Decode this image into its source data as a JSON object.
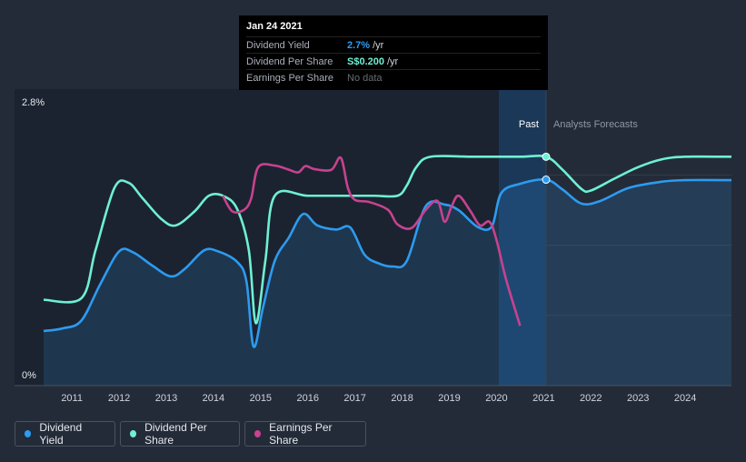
{
  "chart_data": {
    "type": "line",
    "x_ticks": [
      "2011",
      "2012",
      "2013",
      "2014",
      "2015",
      "2016",
      "2017",
      "2018",
      "2019",
      "2020",
      "2021",
      "2022",
      "2023",
      "2024"
    ],
    "y_ticks": [
      "2.8%",
      "0%"
    ],
    "past_label": "Past",
    "forecast_label": "Analysts Forecasts",
    "series": [
      {
        "name": "Dividend Yield",
        "color": "#2d9bf0",
        "points": [
          [
            2010.4,
            1.05
          ],
          [
            2010.8,
            1.1
          ],
          [
            2011.2,
            1.25
          ],
          [
            2011.6,
            1.95
          ],
          [
            2012.0,
            2.58
          ],
          [
            2012.3,
            2.56
          ],
          [
            2012.7,
            2.31
          ],
          [
            2013.1,
            2.1
          ],
          [
            2013.4,
            2.25
          ],
          [
            2013.8,
            2.6
          ],
          [
            2014.1,
            2.58
          ],
          [
            2014.5,
            2.38
          ],
          [
            2014.7,
            2.0
          ],
          [
            2014.85,
            0.75
          ],
          [
            2015.05,
            1.5
          ],
          [
            2015.3,
            2.4
          ],
          [
            2015.6,
            2.85
          ],
          [
            2015.9,
            3.3
          ],
          [
            2016.2,
            3.08
          ],
          [
            2016.6,
            3.0
          ],
          [
            2016.9,
            3.04
          ],
          [
            2017.2,
            2.52
          ],
          [
            2017.5,
            2.35
          ],
          [
            2017.8,
            2.29
          ],
          [
            2018.1,
            2.4
          ],
          [
            2018.5,
            3.45
          ],
          [
            2018.9,
            3.48
          ],
          [
            2019.2,
            3.37
          ],
          [
            2019.6,
            3.05
          ],
          [
            2019.9,
            3.06
          ],
          [
            2020.1,
            3.7
          ],
          [
            2020.5,
            3.88
          ],
          [
            2021.05,
            3.96
          ],
          [
            2021.4,
            3.77
          ],
          [
            2021.8,
            3.5
          ],
          [
            2022.2,
            3.55
          ],
          [
            2022.8,
            3.8
          ],
          [
            2023.5,
            3.92
          ],
          [
            2024.0,
            3.95
          ],
          [
            2024.98,
            3.95
          ]
        ]
      },
      {
        "name": "Dividend Per Share",
        "color": "#6ff0d2",
        "points": [
          [
            2010.4,
            1.65
          ],
          [
            2011.2,
            1.68
          ],
          [
            2011.5,
            2.6
          ],
          [
            2011.9,
            3.8
          ],
          [
            2012.2,
            3.9
          ],
          [
            2012.5,
            3.6
          ],
          [
            2012.9,
            3.2
          ],
          [
            2013.2,
            3.08
          ],
          [
            2013.6,
            3.35
          ],
          [
            2013.9,
            3.65
          ],
          [
            2014.2,
            3.65
          ],
          [
            2014.5,
            3.4
          ],
          [
            2014.75,
            2.6
          ],
          [
            2014.9,
            1.2
          ],
          [
            2015.1,
            2.4
          ],
          [
            2015.3,
            3.65
          ],
          [
            2016.0,
            3.65
          ],
          [
            2016.8,
            3.65
          ],
          [
            2017.4,
            3.65
          ],
          [
            2017.9,
            3.65
          ],
          [
            2018.1,
            3.85
          ],
          [
            2018.3,
            4.2
          ],
          [
            2018.6,
            4.4
          ],
          [
            2019.5,
            4.4
          ],
          [
            2020.5,
            4.4
          ],
          [
            2021.05,
            4.4
          ],
          [
            2021.4,
            4.15
          ],
          [
            2021.8,
            3.78
          ],
          [
            2022.0,
            3.75
          ],
          [
            2022.5,
            3.98
          ],
          [
            2023.0,
            4.2
          ],
          [
            2023.5,
            4.35
          ],
          [
            2024.0,
            4.4
          ],
          [
            2024.98,
            4.4
          ]
        ]
      },
      {
        "name": "Earnings Per Share",
        "color": "#c7428f",
        "points": [
          [
            2014.2,
            3.65
          ],
          [
            2014.4,
            3.35
          ],
          [
            2014.65,
            3.38
          ],
          [
            2014.8,
            3.6
          ],
          [
            2014.95,
            4.2
          ],
          [
            2015.3,
            4.23
          ],
          [
            2015.6,
            4.15
          ],
          [
            2015.8,
            4.1
          ],
          [
            2015.95,
            4.22
          ],
          [
            2016.15,
            4.16
          ],
          [
            2016.5,
            4.15
          ],
          [
            2016.7,
            4.38
          ],
          [
            2016.85,
            3.8
          ],
          [
            2017.0,
            3.57
          ],
          [
            2017.3,
            3.53
          ],
          [
            2017.7,
            3.38
          ],
          [
            2017.9,
            3.1
          ],
          [
            2018.2,
            3.03
          ],
          [
            2018.5,
            3.38
          ],
          [
            2018.75,
            3.55
          ],
          [
            2018.9,
            3.15
          ],
          [
            2019.05,
            3.45
          ],
          [
            2019.2,
            3.65
          ],
          [
            2019.45,
            3.35
          ],
          [
            2019.65,
            3.08
          ],
          [
            2019.85,
            3.15
          ],
          [
            2020.0,
            2.8
          ],
          [
            2020.2,
            2.05
          ],
          [
            2020.5,
            1.15
          ]
        ]
      }
    ],
    "past_split_x": 2021.05,
    "forecast_shade_start_x": 2020.05,
    "x_range": [
      2010.4,
      2024.98
    ],
    "y_range": [
      0,
      5.7
    ],
    "grid": true,
    "legend_position": "bottom-left"
  },
  "tooltip": {
    "date": "Jan 24 2021",
    "rows": [
      {
        "label": "Dividend Yield",
        "value": "2.7%",
        "unit": "/yr"
      },
      {
        "label": "Dividend Per Share",
        "value": "S$0.200",
        "unit": "/yr"
      },
      {
        "label": "Earnings Per Share",
        "value": "No data",
        "unit": ""
      }
    ]
  },
  "legend": [
    {
      "label": "Dividend Yield",
      "color": "#2d9bf0"
    },
    {
      "label": "Dividend Per Share",
      "color": "#6ff0d2"
    },
    {
      "label": "Earnings Per Share",
      "color": "#c7428f"
    }
  ]
}
